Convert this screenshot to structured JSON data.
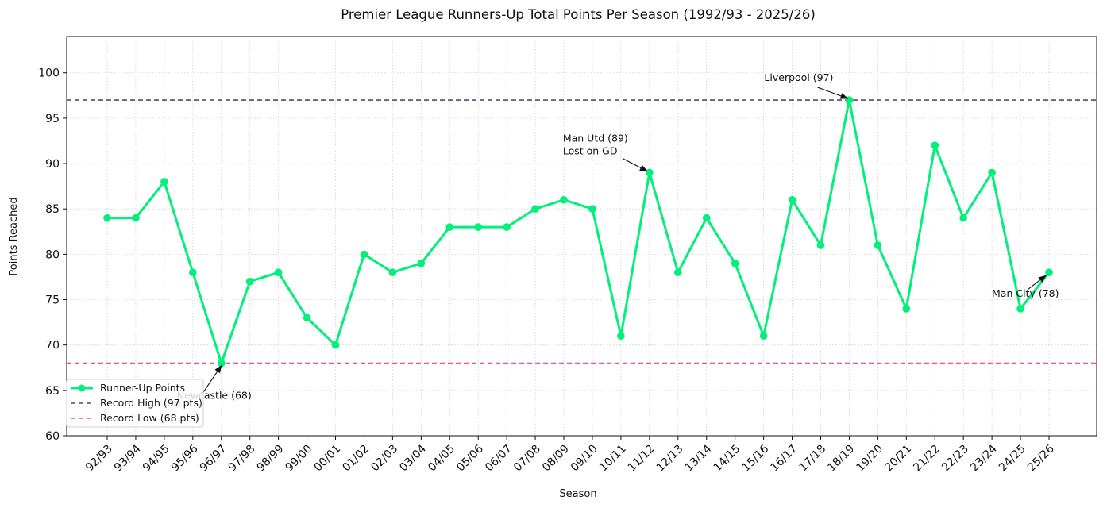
{
  "chart_data": {
    "type": "line",
    "title": "Premier League Runners-Up Total Points Per Season (1992/93 - 2025/26)",
    "xlabel": "Season",
    "ylabel": "Points Reached",
    "ylim": [
      60,
      104
    ],
    "yticks": [
      60,
      65,
      70,
      75,
      80,
      85,
      90,
      95,
      100
    ],
    "grid": true,
    "legend_position": "lower-left",
    "categories": [
      "92/93",
      "93/94",
      "94/95",
      "95/96",
      "96/97",
      "97/98",
      "98/99",
      "99/00",
      "00/01",
      "01/02",
      "02/03",
      "03/04",
      "04/05",
      "05/06",
      "06/07",
      "07/08",
      "08/09",
      "09/10",
      "10/11",
      "11/12",
      "12/13",
      "13/14",
      "14/15",
      "15/16",
      "16/17",
      "17/18",
      "18/19",
      "19/20",
      "20/21",
      "21/22",
      "22/23",
      "23/24",
      "24/25",
      "25/26"
    ],
    "series": [
      {
        "name": "Runner-Up Points",
        "color": "#00f07a",
        "values": [
          84,
          84,
          88,
          78,
          68,
          77,
          78,
          73,
          70,
          80,
          78,
          79,
          83,
          83,
          83,
          85,
          86,
          85,
          71,
          89,
          78,
          84,
          79,
          71,
          86,
          81,
          97,
          81,
          74,
          92,
          84,
          89,
          74,
          78
        ]
      }
    ],
    "reference_lines": [
      {
        "name": "Record High (97 pts)",
        "value": 97,
        "color": "#6b3a76"
      },
      {
        "name": "Record Low (68 pts)",
        "value": 68,
        "color": "#ff4d7d"
      }
    ],
    "annotations": [
      {
        "lines": [
          "Liverpool (97)"
        ],
        "point_index": 26
      },
      {
        "lines": [
          "Man Utd (89)",
          "Lost on GD"
        ],
        "point_index": 19
      },
      {
        "lines": [
          "Newcastle (68)"
        ],
        "point_index": 4
      },
      {
        "lines": [
          "Man City (78)"
        ],
        "point_index": 33
      }
    ]
  }
}
